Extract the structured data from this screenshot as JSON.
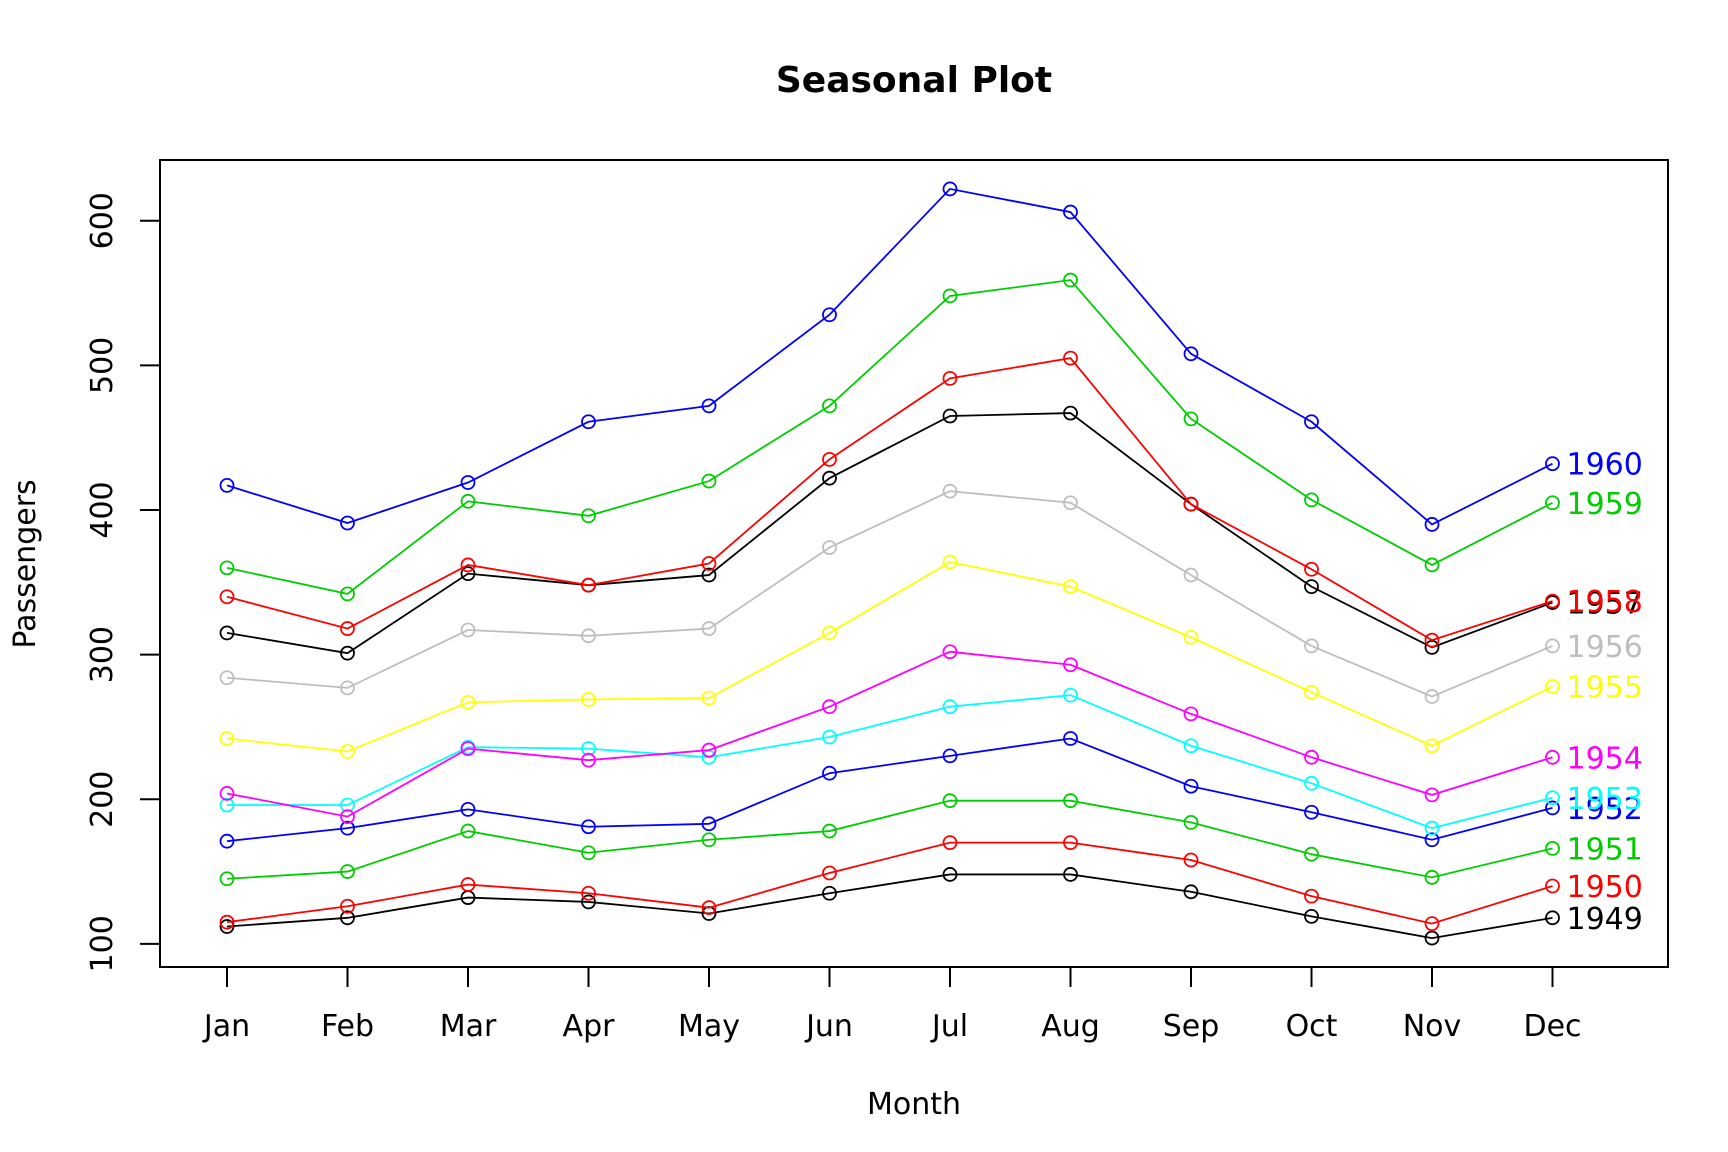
{
  "chart_data": {
    "type": "line",
    "title": "Seasonal Plot",
    "xlabel": "Month",
    "ylabel": "Passengers",
    "categories": [
      "Jan",
      "Feb",
      "Mar",
      "Apr",
      "May",
      "Jun",
      "Jul",
      "Aug",
      "Sep",
      "Oct",
      "Nov",
      "Dec"
    ],
    "yticks": [
      100,
      200,
      300,
      400,
      500,
      600
    ],
    "ylim": [
      84,
      642
    ],
    "grid": false,
    "markers": "open-circle",
    "series": [
      {
        "name": "1949",
        "color": "#000000",
        "values": [
          112,
          118,
          132,
          129,
          121,
          135,
          148,
          148,
          136,
          119,
          104,
          118
        ]
      },
      {
        "name": "1950",
        "color": "#ff0000",
        "values": [
          115,
          126,
          141,
          135,
          125,
          149,
          170,
          170,
          158,
          133,
          114,
          140
        ]
      },
      {
        "name": "1951",
        "color": "#00cd00",
        "values": [
          145,
          150,
          178,
          163,
          172,
          178,
          199,
          199,
          184,
          162,
          146,
          166
        ]
      },
      {
        "name": "1952",
        "color": "#0000ff",
        "values": [
          171,
          180,
          193,
          181,
          183,
          218,
          230,
          242,
          209,
          191,
          172,
          194
        ]
      },
      {
        "name": "1953",
        "color": "#00ffff",
        "values": [
          196,
          196,
          236,
          235,
          229,
          243,
          264,
          272,
          237,
          211,
          180,
          201
        ]
      },
      {
        "name": "1954",
        "color": "#ff00ff",
        "values": [
          204,
          188,
          235,
          227,
          234,
          264,
          302,
          293,
          259,
          229,
          203,
          229
        ]
      },
      {
        "name": "1955",
        "color": "#ffff00",
        "values": [
          242,
          233,
          267,
          269,
          270,
          315,
          364,
          347,
          312,
          274,
          237,
          278
        ]
      },
      {
        "name": "1956",
        "color": "#bebebe",
        "values": [
          284,
          277,
          317,
          313,
          318,
          374,
          413,
          405,
          355,
          306,
          271,
          306
        ]
      },
      {
        "name": "1957",
        "color": "#000000",
        "values": [
          315,
          301,
          356,
          348,
          355,
          422,
          465,
          467,
          404,
          347,
          305,
          336
        ]
      },
      {
        "name": "1958",
        "color": "#ff0000",
        "values": [
          340,
          318,
          362,
          348,
          363,
          435,
          491,
          505,
          404,
          359,
          310,
          337
        ]
      },
      {
        "name": "1959",
        "color": "#00cd00",
        "values": [
          360,
          342,
          406,
          396,
          420,
          472,
          548,
          559,
          463,
          407,
          362,
          405
        ]
      },
      {
        "name": "1960",
        "color": "#0000ff",
        "values": [
          417,
          391,
          419,
          461,
          472,
          535,
          622,
          606,
          508,
          461,
          390,
          432
        ]
      }
    ]
  }
}
